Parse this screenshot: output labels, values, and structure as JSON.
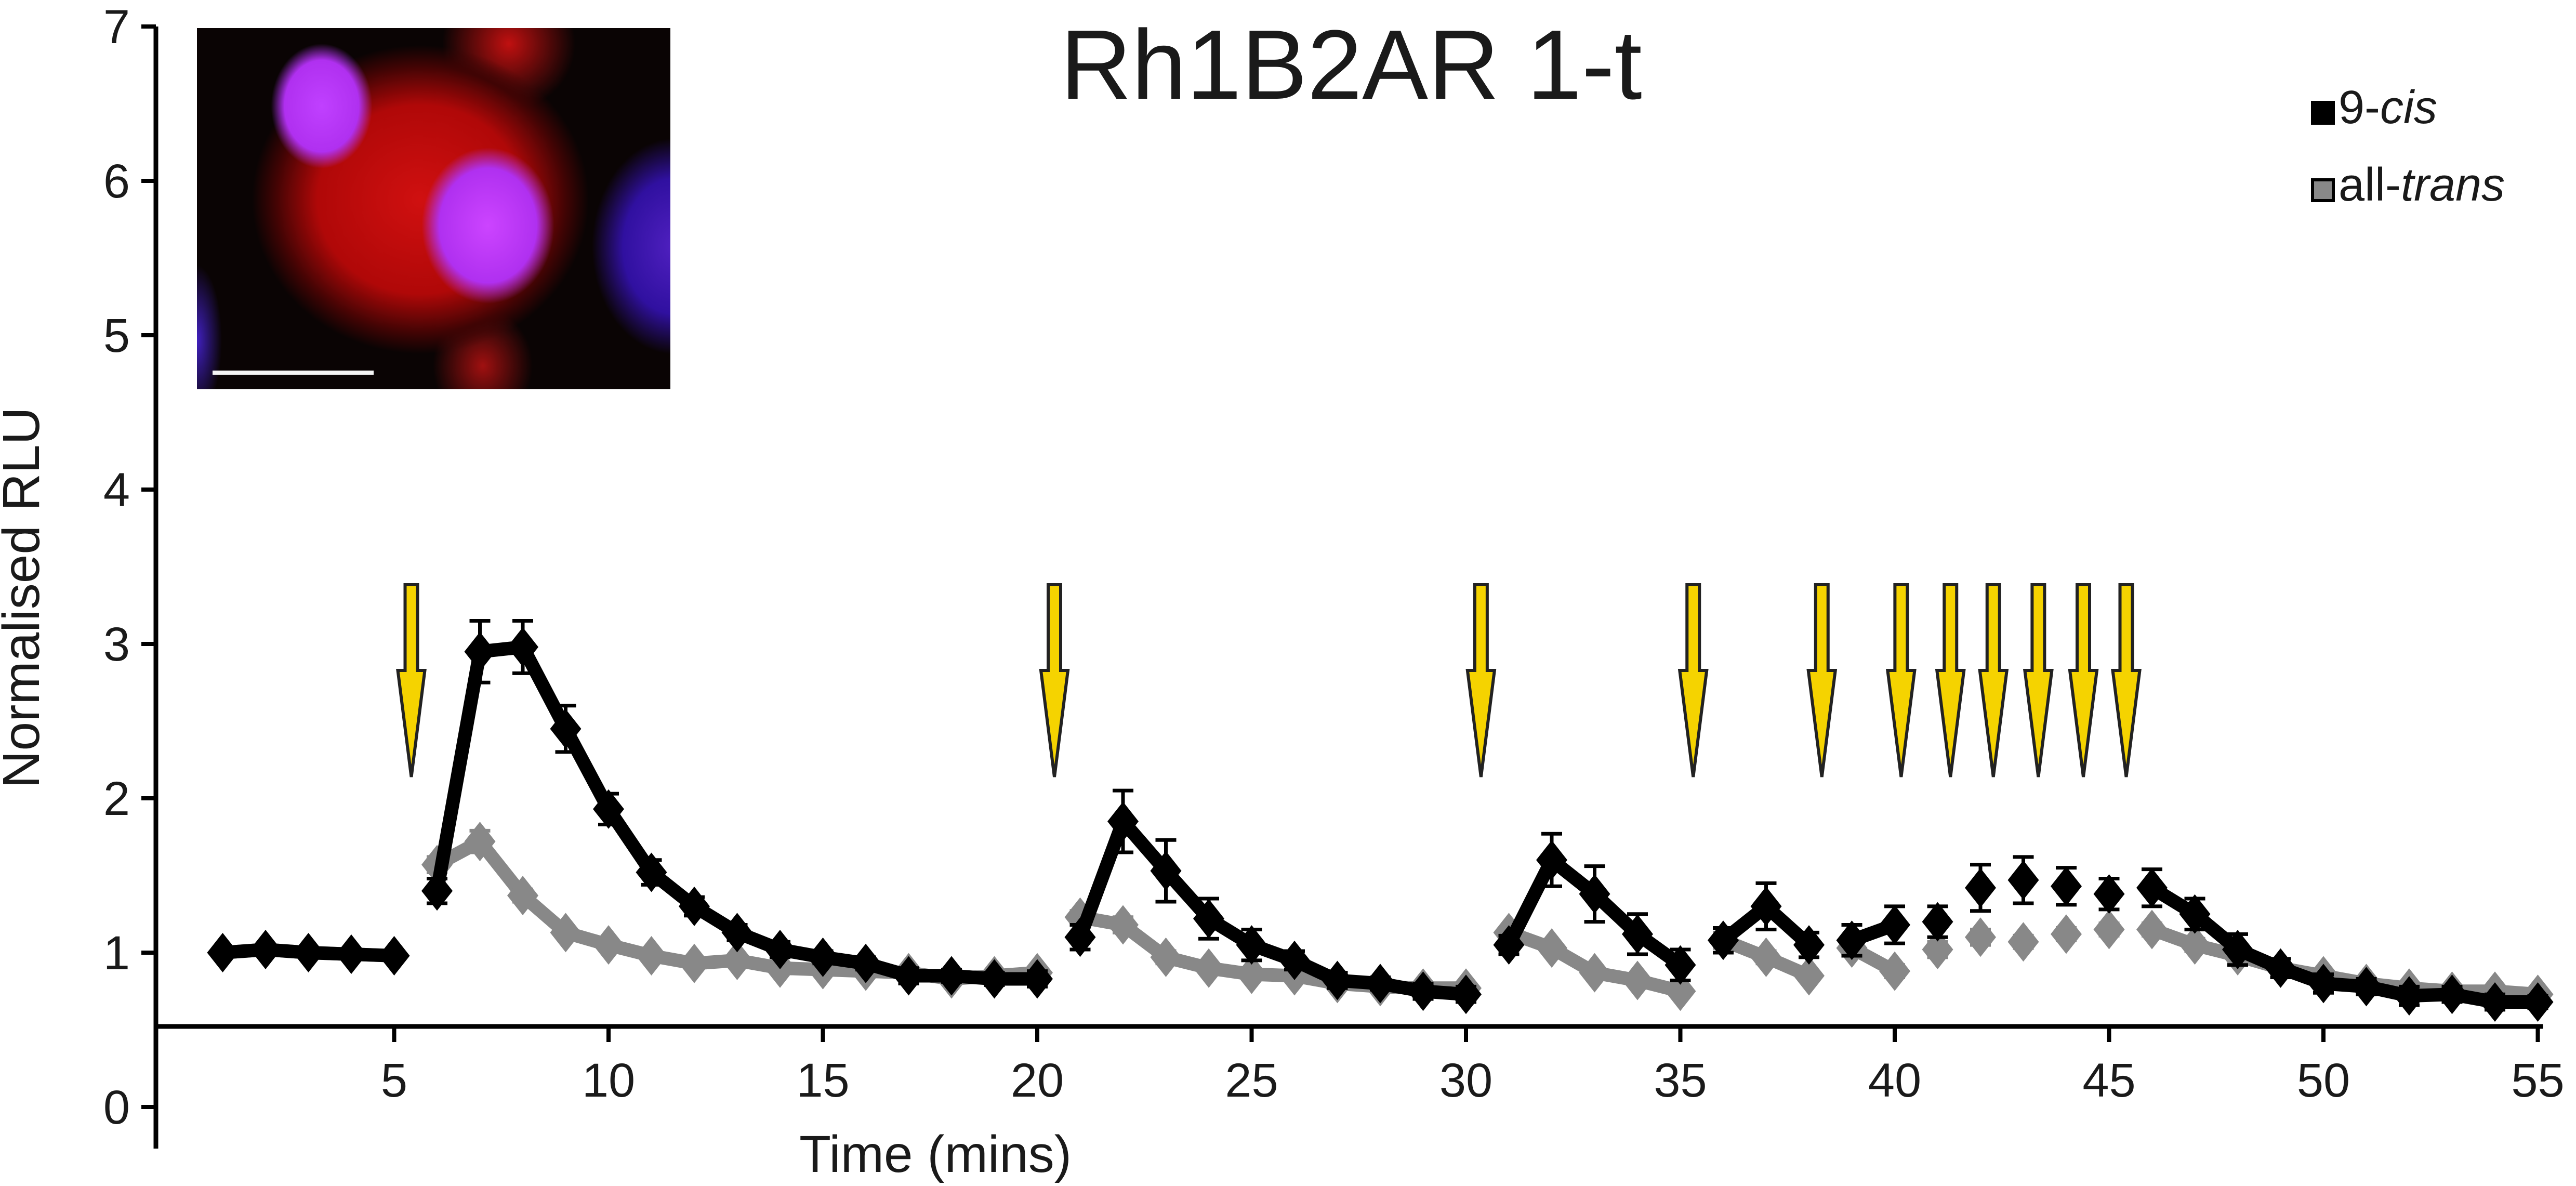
{
  "chart_data": {
    "type": "line",
    "title": "Rh1B2AR 1-t",
    "xlabel": "Time (mins)",
    "ylabel": "Normalised RLU",
    "xlim": [
      0,
      55
    ],
    "ylim": [
      0,
      7
    ],
    "x_ticks": [
      5,
      10,
      15,
      20,
      25,
      30,
      35,
      40,
      45,
      50,
      55
    ],
    "y_ticks": [
      0,
      1,
      2,
      3,
      4,
      5,
      6,
      7
    ],
    "grid": false,
    "legend_position": "top-right",
    "stimulus_arrows_x": [
      5.4,
      20.4,
      30.35,
      35.3,
      38.3,
      40.15,
      41.3,
      42.3,
      43.35,
      44.4,
      45.4
    ],
    "arrow_color": "#f5d300",
    "x": [
      1,
      2,
      3,
      4,
      5,
      6,
      7,
      8,
      9,
      10,
      11,
      12,
      13,
      14,
      15,
      16,
      17,
      18,
      19,
      20,
      21,
      22,
      23,
      24,
      25,
      26,
      27,
      28,
      29,
      30,
      31,
      32,
      33,
      34,
      35,
      36,
      37,
      38,
      39,
      40,
      41,
      42,
      43,
      44,
      45,
      46,
      47,
      48,
      49,
      50,
      51,
      52,
      53,
      54,
      55
    ],
    "series": [
      {
        "name": "9-cis",
        "name_prefix": "9-",
        "name_italic": "cis",
        "color": "#000000",
        "values": [
          1.0,
          1.02,
          1.0,
          0.99,
          0.98,
          1.4,
          2.95,
          2.98,
          2.45,
          1.93,
          1.52,
          1.3,
          1.13,
          1.02,
          0.97,
          0.93,
          0.85,
          0.85,
          0.83,
          0.83,
          1.1,
          1.85,
          1.53,
          1.22,
          1.05,
          0.95,
          0.82,
          0.8,
          0.75,
          0.73,
          1.05,
          1.6,
          1.38,
          1.12,
          0.92,
          1.08,
          1.3,
          1.05,
          1.08,
          1.18,
          1.2,
          1.42,
          1.47,
          1.43,
          1.38,
          1.42,
          1.25,
          1.02,
          0.9,
          0.8,
          0.78,
          0.72,
          0.73,
          0.68,
          0.68
        ],
        "errors": [
          0.03,
          0.03,
          0.03,
          0.03,
          0.03,
          0.08,
          0.2,
          0.17,
          0.15,
          0.1,
          0.08,
          0.06,
          0.05,
          0.05,
          0.04,
          0.04,
          0.05,
          0.04,
          0.04,
          0.05,
          0.08,
          0.2,
          0.2,
          0.13,
          0.1,
          0.06,
          0.05,
          0.04,
          0.05,
          0.05,
          0.06,
          0.17,
          0.18,
          0.13,
          0.1,
          0.08,
          0.15,
          0.08,
          0.1,
          0.12,
          0.1,
          0.15,
          0.15,
          0.12,
          0.1,
          0.12,
          0.1,
          0.1,
          0.06,
          0.06,
          0.05,
          0.06,
          0.05,
          0.05,
          0.04
        ],
        "segments": [
          [
            1,
            5
          ],
          [
            6,
            20
          ],
          [
            21,
            30
          ],
          [
            31,
            35
          ],
          [
            36,
            38
          ],
          [
            39,
            40
          ],
          [
            41,
            41
          ],
          [
            42,
            42
          ],
          [
            43,
            43
          ],
          [
            44,
            44
          ],
          [
            45,
            45
          ],
          [
            46,
            55
          ]
        ]
      },
      {
        "name": "all-trans",
        "name_prefix": "all-",
        "name_italic": "trans",
        "color": "#888888",
        "values": [
          1.0,
          1.02,
          1.0,
          0.99,
          0.98,
          1.57,
          1.72,
          1.37,
          1.13,
          1.05,
          0.98,
          0.93,
          0.95,
          0.9,
          0.89,
          0.88,
          0.87,
          0.83,
          0.85,
          0.87,
          1.23,
          1.18,
          0.97,
          0.9,
          0.86,
          0.85,
          0.8,
          0.78,
          0.77,
          0.77,
          1.13,
          1.03,
          0.87,
          0.82,
          0.75,
          1.08,
          0.97,
          0.85,
          1.03,
          0.88,
          1.02,
          1.1,
          1.07,
          1.12,
          1.15,
          1.15,
          1.05,
          0.98,
          0.9,
          0.85,
          0.8,
          0.77,
          0.75,
          0.75,
          0.73
        ],
        "errors": [
          0.03,
          0.03,
          0.03,
          0.03,
          0.03,
          0.05,
          0.07,
          0.04,
          0.03,
          0.03,
          0.03,
          0.03,
          0.03,
          0.03,
          0.03,
          0.03,
          0.03,
          0.03,
          0.03,
          0.03,
          0.04,
          0.05,
          0.04,
          0.03,
          0.03,
          0.03,
          0.03,
          0.03,
          0.03,
          0.03,
          0.03,
          0.03,
          0.03,
          0.03,
          0.03,
          0.05,
          0.04,
          0.03,
          0.05,
          0.04,
          0.05,
          0.05,
          0.04,
          0.04,
          0.04,
          0.04,
          0.04,
          0.04,
          0.03,
          0.03,
          0.03,
          0.03,
          0.03,
          0.03,
          0.03
        ],
        "segments": [
          [
            1,
            5
          ],
          [
            6,
            20
          ],
          [
            21,
            30
          ],
          [
            31,
            35
          ],
          [
            36,
            38
          ],
          [
            39,
            40
          ],
          [
            41,
            41
          ],
          [
            42,
            42
          ],
          [
            43,
            43
          ],
          [
            44,
            44
          ],
          [
            45,
            45
          ],
          [
            46,
            55
          ]
        ]
      }
    ]
  }
}
